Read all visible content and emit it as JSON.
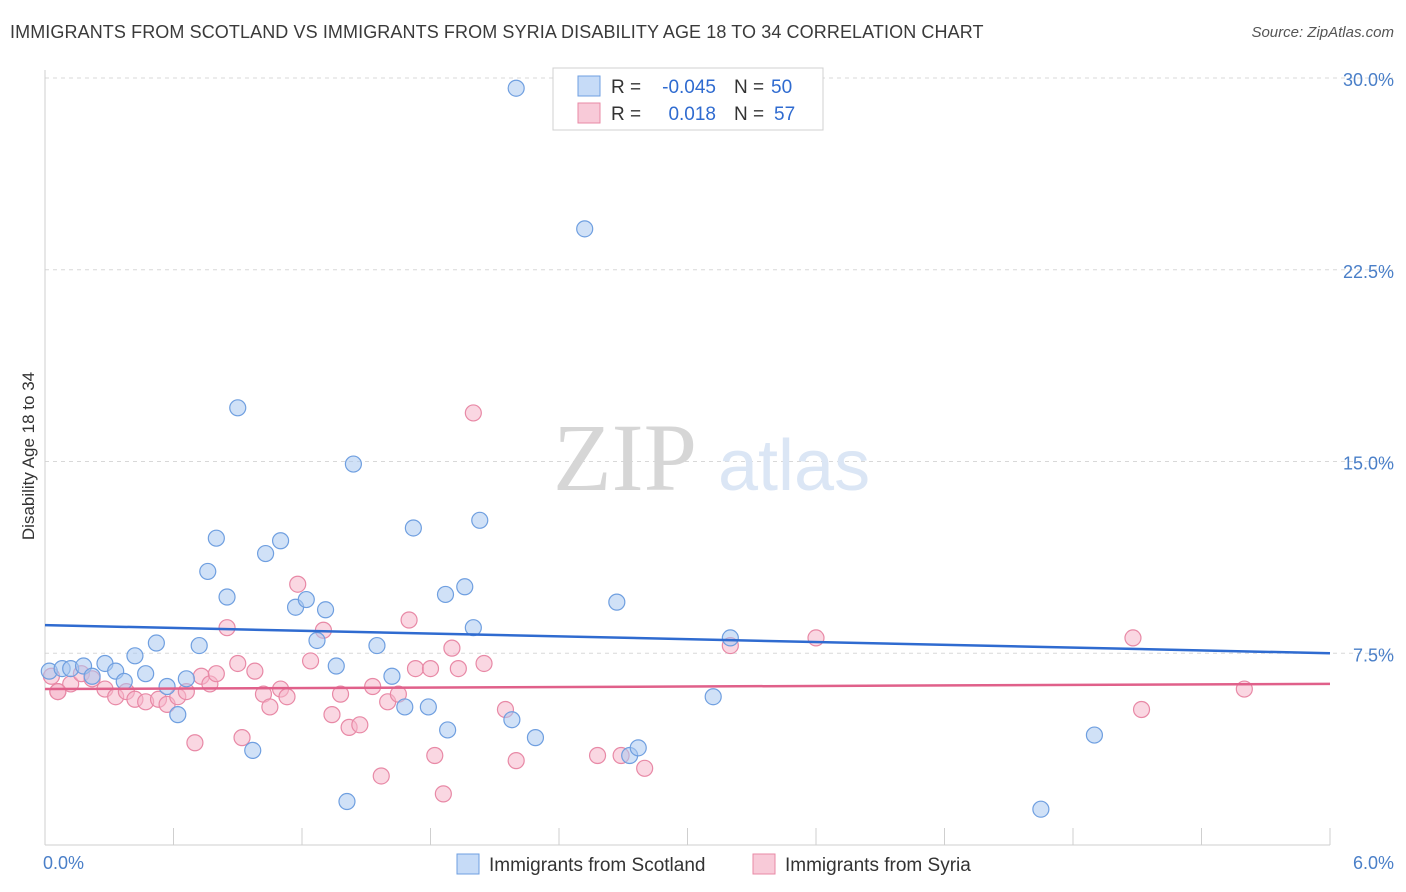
{
  "title": "IMMIGRANTS FROM SCOTLAND VS IMMIGRANTS FROM SYRIA DISABILITY AGE 18 TO 34 CORRELATION CHART",
  "source": "Source: ZipAtlas.com",
  "watermark": {
    "zip": "ZIP",
    "atlas": "atlas"
  },
  "colors": {
    "scotland_fill": "#aac8f0",
    "scotland_stroke": "#6f9fe0",
    "scotland_line": "#2f6bd0",
    "syria_fill": "#f5b7ca",
    "syria_stroke": "#e889a6",
    "syria_line": "#e0608a",
    "tick_label": "#4a7fc8",
    "grid": "#d8d8d8"
  },
  "legend": {
    "rows": [
      {
        "r_label": "R =",
        "r_value": "-0.045",
        "n_label": "N =",
        "n_value": "50"
      },
      {
        "r_label": "R =",
        "r_value": "0.018",
        "n_label": "N =",
        "n_value": "57"
      }
    ]
  },
  "chart_data": {
    "type": "scatter",
    "ylabel": "Disability Age 18 to 34",
    "xlim": [
      0,
      6
    ],
    "ylim": [
      0,
      30
    ],
    "x_tick_labels": [
      "0.0%",
      "6.0%"
    ],
    "y_ticks": [
      7.5,
      15.0,
      22.5,
      30.0
    ],
    "y_tick_labels": [
      "7.5%",
      "15.0%",
      "22.5%",
      "30.0%"
    ],
    "grid": true,
    "legend_position": "top-center",
    "series": [
      {
        "name": "Immigrants from Scotland",
        "trend": [
          [
            0,
            8.6
          ],
          [
            6,
            7.5
          ]
        ],
        "points": [
          [
            0.02,
            6.8
          ],
          [
            0.08,
            6.9
          ],
          [
            0.12,
            6.9
          ],
          [
            0.18,
            7.0
          ],
          [
            0.22,
            6.6
          ],
          [
            0.28,
            7.1
          ],
          [
            0.33,
            6.8
          ],
          [
            0.37,
            6.4
          ],
          [
            0.42,
            7.4
          ],
          [
            0.47,
            6.7
          ],
          [
            0.52,
            7.9
          ],
          [
            0.57,
            6.2
          ],
          [
            0.62,
            5.1
          ],
          [
            0.66,
            6.5
          ],
          [
            0.72,
            7.8
          ],
          [
            0.76,
            10.7
          ],
          [
            0.8,
            12.0
          ],
          [
            0.85,
            9.7
          ],
          [
            0.9,
            17.1
          ],
          [
            0.97,
            3.7
          ],
          [
            1.03,
            11.4
          ],
          [
            1.1,
            11.9
          ],
          [
            1.17,
            9.3
          ],
          [
            1.22,
            9.6
          ],
          [
            1.27,
            8.0
          ],
          [
            1.31,
            9.2
          ],
          [
            1.36,
            7.0
          ],
          [
            1.41,
            1.7
          ],
          [
            1.44,
            14.9
          ],
          [
            1.55,
            7.8
          ],
          [
            1.62,
            6.6
          ],
          [
            1.68,
            5.4
          ],
          [
            1.72,
            12.4
          ],
          [
            1.79,
            5.4
          ],
          [
            1.87,
            9.8
          ],
          [
            1.88,
            4.5
          ],
          [
            1.96,
            10.1
          ],
          [
            2.0,
            8.5
          ],
          [
            2.03,
            12.7
          ],
          [
            2.18,
            4.9
          ],
          [
            2.2,
            29.6
          ],
          [
            2.29,
            4.2
          ],
          [
            2.52,
            24.1
          ],
          [
            2.67,
            9.5
          ],
          [
            2.73,
            3.5
          ],
          [
            2.77,
            3.8
          ],
          [
            3.12,
            5.8
          ],
          [
            3.2,
            8.1
          ],
          [
            4.9,
            4.3
          ],
          [
            4.65,
            1.4
          ]
        ]
      },
      {
        "name": "Immigrants from Syria",
        "trend": [
          [
            0,
            6.1
          ],
          [
            6,
            6.3
          ]
        ],
        "points": [
          [
            0.03,
            6.6
          ],
          [
            0.06,
            6.0
          ],
          [
            0.12,
            6.3
          ],
          [
            0.17,
            6.7
          ],
          [
            0.22,
            6.5
          ],
          [
            0.28,
            6.1
          ],
          [
            0.33,
            5.8
          ],
          [
            0.38,
            6.0
          ],
          [
            0.42,
            5.7
          ],
          [
            0.47,
            5.6
          ],
          [
            0.53,
            5.7
          ],
          [
            0.57,
            5.5
          ],
          [
            0.62,
            5.8
          ],
          [
            0.66,
            6.0
          ],
          [
            0.7,
            4.0
          ],
          [
            0.73,
            6.6
          ],
          [
            0.77,
            6.3
          ],
          [
            0.8,
            6.7
          ],
          [
            0.85,
            8.5
          ],
          [
            0.9,
            7.1
          ],
          [
            0.92,
            4.2
          ],
          [
            0.98,
            6.8
          ],
          [
            1.02,
            5.9
          ],
          [
            1.05,
            5.4
          ],
          [
            1.1,
            6.1
          ],
          [
            1.13,
            5.8
          ],
          [
            1.18,
            10.2
          ],
          [
            1.24,
            7.2
          ],
          [
            1.3,
            8.4
          ],
          [
            1.34,
            5.1
          ],
          [
            1.38,
            5.9
          ],
          [
            1.42,
            4.6
          ],
          [
            1.47,
            4.7
          ],
          [
            1.53,
            6.2
          ],
          [
            1.57,
            2.7
          ],
          [
            1.6,
            5.6
          ],
          [
            1.65,
            5.9
          ],
          [
            1.7,
            8.8
          ],
          [
            1.73,
            6.9
          ],
          [
            1.8,
            6.9
          ],
          [
            1.82,
            3.5
          ],
          [
            1.86,
            2.0
          ],
          [
            1.9,
            7.7
          ],
          [
            1.93,
            6.9
          ],
          [
            2.0,
            16.9
          ],
          [
            2.05,
            7.1
          ],
          [
            2.15,
            5.3
          ],
          [
            2.2,
            3.3
          ],
          [
            2.58,
            3.5
          ],
          [
            2.69,
            3.5
          ],
          [
            2.8,
            3.0
          ],
          [
            3.2,
            7.8
          ],
          [
            3.6,
            8.1
          ],
          [
            5.08,
            8.1
          ],
          [
            5.12,
            5.3
          ],
          [
            5.6,
            6.1
          ],
          [
            0.06,
            6.0
          ]
        ]
      }
    ]
  },
  "bottom_legend": [
    "Immigrants from Scotland",
    "Immigrants from Syria"
  ]
}
